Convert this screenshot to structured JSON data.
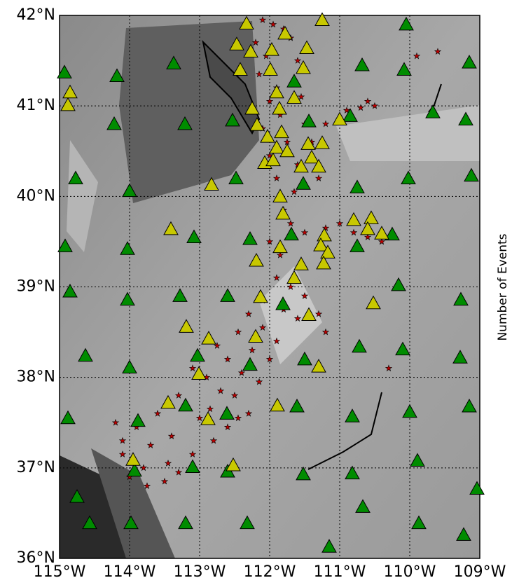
{
  "chart_data": {
    "type": "scatter",
    "side_label": "Number of Events",
    "xlim": [
      -115,
      -109
    ],
    "ylim": [
      36,
      42
    ],
    "xticks": [
      {
        "value": -115,
        "label": "115°W"
      },
      {
        "value": -114,
        "label": "114°W"
      },
      {
        "value": -113,
        "label": "113°W"
      },
      {
        "value": -112,
        "label": "112°W"
      },
      {
        "value": -111,
        "label": "111°W"
      },
      {
        "value": -110,
        "label": "110°W"
      },
      {
        "value": -109,
        "label": "109°W"
      }
    ],
    "yticks": [
      {
        "value": 36,
        "label": "36°N"
      },
      {
        "value": 37,
        "label": "37°N"
      },
      {
        "value": 38,
        "label": "38°N"
      },
      {
        "value": 39,
        "label": "39°N"
      },
      {
        "value": 40,
        "label": "40°N"
      },
      {
        "value": 41,
        "label": "41°N"
      },
      {
        "value": 42,
        "label": "42°N"
      }
    ],
    "grid": true,
    "series": [
      {
        "color": "#c8c800",
        "marker": "triangle",
        "x": [
          -112.33,
          -111.25,
          -111.78,
          -112.47,
          -112.27,
          -111.97,
          -111.47,
          -112.42,
          -111.99,
          -111.52,
          -111.9,
          -111.65,
          -112.25,
          -111.86,
          -112.18,
          -112.03,
          -111.83,
          -111.9,
          -111.75,
          -111.45,
          -111.25,
          -111.4,
          -112.07,
          -111.95,
          -111.55,
          -111.3,
          -111.0,
          -112.83,
          -111.85,
          -111.81,
          -113.41,
          -110.8,
          -110.55,
          -110.6,
          -110.4,
          -111.22,
          -111.27,
          -111.17,
          -111.23,
          -111.85,
          -112.19,
          -111.55,
          -111.65,
          -110.52,
          -112.13,
          -111.44,
          -113.19,
          -112.87,
          -112.2,
          -113.01,
          -111.3,
          -113.45,
          -111.89,
          -112.88,
          -113.95,
          -112.52,
          -114.88,
          -114.85
        ],
        "y": [
          41.91,
          41.95,
          41.8,
          41.68,
          41.6,
          41.62,
          41.64,
          41.4,
          41.4,
          41.42,
          41.15,
          41.09,
          40.97,
          40.97,
          40.79,
          40.66,
          40.71,
          40.54,
          40.5,
          40.58,
          40.59,
          40.43,
          40.37,
          40.4,
          40.33,
          40.33,
          40.85,
          40.13,
          40.0,
          39.81,
          39.64,
          39.74,
          39.76,
          39.64,
          39.59,
          39.57,
          39.46,
          39.38,
          39.26,
          39.44,
          39.29,
          39.25,
          39.1,
          38.82,
          38.89,
          38.69,
          38.56,
          38.43,
          38.45,
          38.04,
          38.12,
          37.72,
          37.69,
          37.54,
          37.09,
          37.03,
          41.01,
          41.15
        ]
      },
      {
        "color": "#008c00",
        "marker": "triangle",
        "x": [
          -114.93,
          -114.18,
          -113.37,
          -110.68,
          -110.05,
          -110.08,
          -109.15,
          -109.67,
          -109.2,
          -114.22,
          -113.21,
          -112.53,
          -114.77,
          -114.0,
          -112.48,
          -110.75,
          -110.02,
          -109.12,
          -114.92,
          -114.03,
          -113.08,
          -112.28,
          -111.69,
          -110.75,
          -110.25,
          -114.85,
          -114.03,
          -113.28,
          -112.6,
          -111.81,
          -110.16,
          -109.27,
          -114.63,
          -114.0,
          -113.03,
          -112.28,
          -111.5,
          -110.72,
          -110.1,
          -109.28,
          -114.88,
          -113.88,
          -113.2,
          -112.61,
          -111.61,
          -110.82,
          -110.0,
          -109.15,
          -113.93,
          -113.1,
          -112.6,
          -111.52,
          -110.82,
          -109.89,
          -114.75,
          -114.57,
          -113.98,
          -113.2,
          -112.32,
          -110.67,
          -109.87,
          -109.23,
          -111.15,
          -109.04,
          -111.44,
          -111.65,
          -110.85,
          -111.52
        ],
        "y": [
          41.37,
          41.33,
          41.47,
          41.45,
          41.9,
          41.4,
          41.48,
          40.93,
          40.85,
          40.8,
          40.8,
          40.84,
          40.2,
          40.06,
          40.2,
          40.1,
          40.2,
          40.23,
          39.45,
          39.42,
          39.55,
          39.53,
          39.58,
          39.45,
          39.58,
          38.95,
          38.86,
          38.9,
          38.9,
          38.81,
          39.02,
          38.86,
          38.24,
          38.11,
          38.24,
          38.14,
          38.2,
          38.34,
          38.31,
          38.22,
          37.55,
          37.52,
          37.69,
          37.6,
          37.68,
          37.57,
          37.62,
          37.68,
          36.97,
          37.01,
          36.96,
          36.93,
          36.94,
          37.08,
          36.68,
          36.39,
          36.39,
          36.39,
          36.39,
          36.57,
          36.39,
          36.26,
          36.13,
          36.77,
          40.83,
          41.27,
          40.89,
          40.14
        ]
      },
      {
        "color": "#c00000",
        "marker": "star",
        "x": [
          -112.1,
          -111.95,
          -111.8,
          -112.2,
          -112.05,
          -111.7,
          -112.15,
          -111.9,
          -111.6,
          -112.0,
          -111.85,
          -111.55,
          -112.1,
          -111.75,
          -111.5,
          -112.0,
          -111.6,
          -111.45,
          -111.9,
          -111.65,
          -111.3,
          -110.9,
          -110.7,
          -110.5,
          -111.2,
          -111.4,
          -111.8,
          -111.7,
          -111.5,
          -112.0,
          -111.85,
          -111.2,
          -111.0,
          -110.8,
          -110.6,
          -110.4,
          -111.9,
          -111.7,
          -111.5,
          -112.1,
          -111.8,
          -111.6,
          -111.3,
          -112.3,
          -112.1,
          -111.9,
          -112.45,
          -112.25,
          -112.0,
          -112.6,
          -112.4,
          -112.15,
          -112.75,
          -112.5,
          -112.3,
          -112.9,
          -112.7,
          -112.45,
          -113.1,
          -112.85,
          -112.6,
          -113.3,
          -113.0,
          -112.8,
          -113.6,
          -113.4,
          -113.1,
          -113.9,
          -113.7,
          -113.45,
          -114.1,
          -113.8,
          -113.5,
          -114.2,
          -114.0,
          -113.75,
          -114.1,
          -113.3,
          -110.3,
          -109.6,
          -109.9,
          -110.6,
          -111.2
        ],
        "y": [
          41.95,
          41.9,
          41.85,
          41.7,
          41.55,
          41.75,
          41.35,
          41.2,
          41.5,
          41.05,
          40.9,
          41.1,
          40.75,
          40.6,
          40.8,
          40.45,
          40.35,
          40.55,
          40.2,
          40.05,
          40.2,
          40.95,
          40.98,
          41.0,
          40.8,
          40.6,
          39.85,
          39.7,
          39.6,
          39.5,
          39.35,
          39.65,
          39.7,
          39.6,
          39.55,
          39.5,
          39.1,
          39.0,
          38.9,
          38.85,
          38.75,
          38.65,
          38.7,
          38.7,
          38.55,
          38.4,
          38.5,
          38.3,
          38.2,
          38.2,
          38.05,
          37.95,
          38.35,
          37.8,
          37.6,
          38.0,
          37.85,
          37.55,
          38.1,
          37.65,
          37.45,
          37.8,
          37.55,
          37.3,
          37.6,
          37.35,
          37.15,
          37.45,
          37.25,
          37.05,
          37.3,
          37.0,
          36.85,
          37.5,
          36.9,
          36.8,
          37.15,
          36.95,
          38.1,
          41.6,
          41.55,
          41.05,
          38.5
        ]
      }
    ]
  }
}
